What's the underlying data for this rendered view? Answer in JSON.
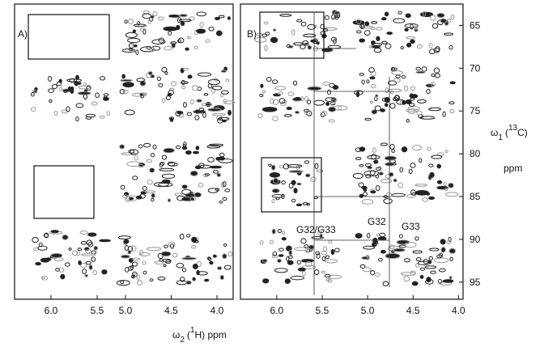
{
  "panels": [
    {
      "label": "A)",
      "xticks": [
        {
          "value": 6,
          "label": "6.0"
        },
        5.5,
        {
          "value": 5,
          "label": "5.0"
        },
        4.5,
        {
          "value": 4,
          "label": "4.0"
        }
      ]
    },
    {
      "label": "B)",
      "xticks": [
        {
          "value": 6,
          "label": "6.0"
        },
        5.5,
        {
          "value": 5,
          "label": "5.0"
        },
        4.5,
        {
          "value": 4,
          "label": "4.0"
        }
      ],
      "xlim": [
        6.4,
        3.95
      ]
    }
  ],
  "y_axis": {
    "ylim": [
      62.5,
      97
    ],
    "yticks": [
      65,
      70,
      75,
      80,
      85,
      90,
      95
    ],
    "label": {
      "symbol": "ω",
      "subscript": "1",
      "open": "(",
      "superscript": "13",
      "rest": "C)"
    },
    "unit": "ppm"
  },
  "x_axis": {
    "label": {
      "symbol": "ω",
      "subscript": "2",
      "open": "(",
      "superscript": "1",
      "rest": "H) ppm"
    }
  },
  "annotations": [
    "G32/G33",
    "G32",
    "G33"
  ]
}
